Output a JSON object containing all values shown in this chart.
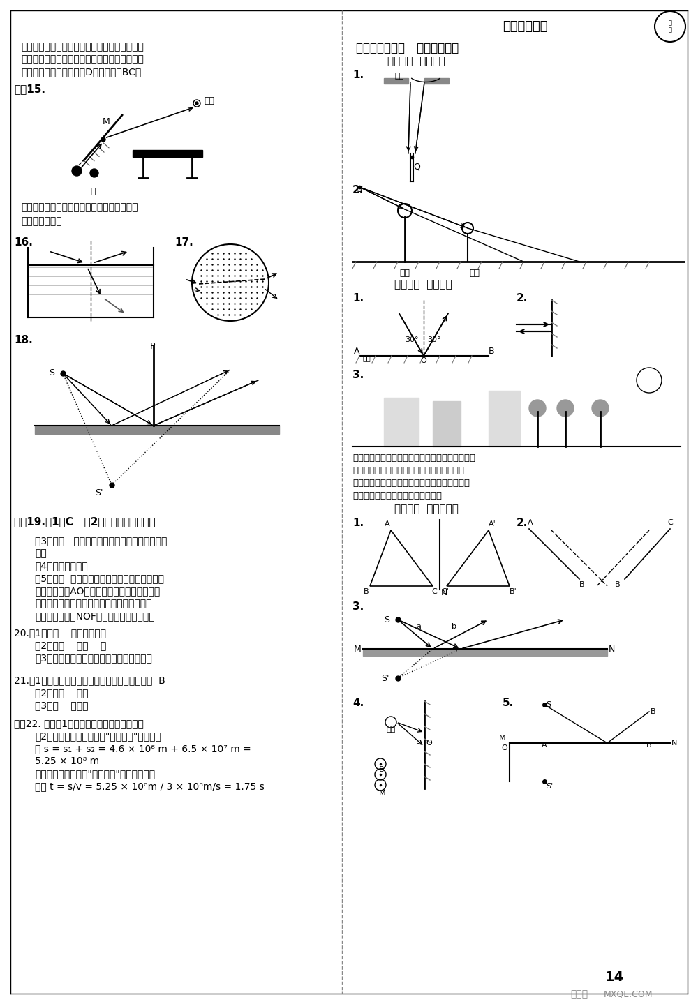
{
  "page_width": 10.0,
  "page_height": 14.39,
  "bg_color": "#ffffff",
  "text_color": "#000000",
  "dpi": 100,
  "header_right": "答案详解详析",
  "title_left": "专项分类复习一   作图题专练卷",
  "subtitle_left": "考点专练  光的传播",
  "section2_header": "考点专练  光的反射",
  "section3_header": "考点专练  平面镜成像"
}
